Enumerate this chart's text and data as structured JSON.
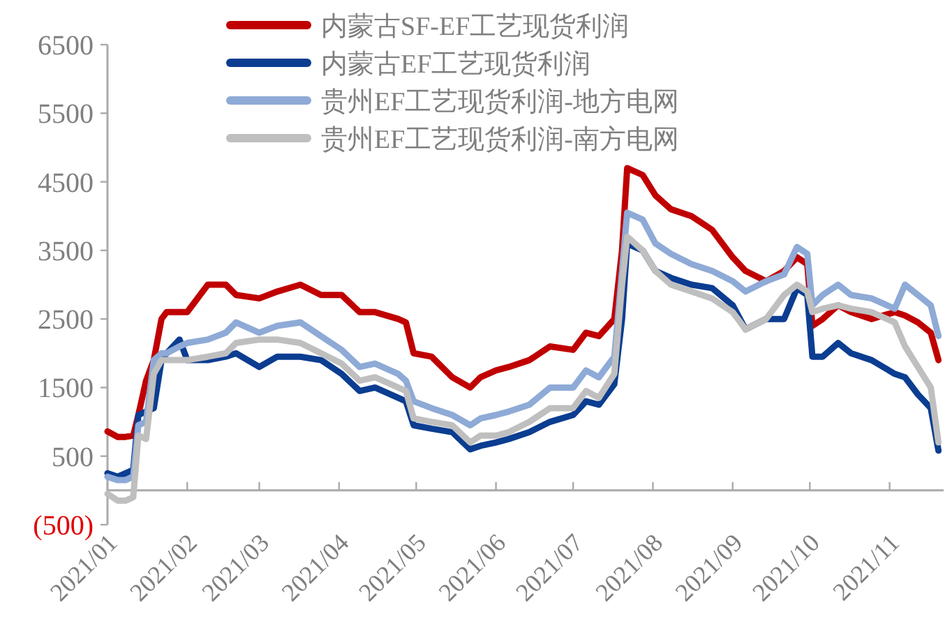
{
  "chart_data": {
    "type": "line",
    "x": [
      "2021-01-01",
      "2021-01-05",
      "2021-01-08",
      "2021-01-11",
      "2021-01-13",
      "2021-01-16",
      "2021-01-19",
      "2021-01-22",
      "2021-01-24",
      "2021-01-29",
      "2021-02-01",
      "2021-02-09",
      "2021-02-16",
      "2021-02-20",
      "2021-03-01",
      "2021-03-08",
      "2021-03-17",
      "2021-03-25",
      "2021-04-02",
      "2021-04-09",
      "2021-04-15",
      "2021-04-24",
      "2021-04-27",
      "2021-04-30",
      "2021-05-07",
      "2021-05-15",
      "2021-05-22",
      "2021-05-26",
      "2021-06-01",
      "2021-06-06",
      "2021-06-14",
      "2021-06-22",
      "2021-07-01",
      "2021-07-06",
      "2021-07-11",
      "2021-07-17",
      "2021-07-20",
      "2021-07-22",
      "2021-07-28",
      "2021-08-02",
      "2021-08-08",
      "2021-08-16",
      "2021-08-24",
      "2021-09-01",
      "2021-09-06",
      "2021-09-14",
      "2021-09-21",
      "2021-09-26",
      "2021-09-30",
      "2021-10-02",
      "2021-10-06",
      "2021-10-12",
      "2021-10-17",
      "2021-10-25",
      "2021-11-03",
      "2021-11-07",
      "2021-11-12",
      "2021-11-17",
      "2021-11-20"
    ],
    "series": [
      {
        "name": "内蒙古SF-EF工艺现货利润",
        "color": "#c00000",
        "values": [
          860,
          780,
          780,
          800,
          1100,
          1600,
          1900,
          2500,
          2600,
          2600,
          2600,
          3000,
          3000,
          2850,
          2800,
          2900,
          3000,
          2850,
          2850,
          2600,
          2600,
          2500,
          2450,
          2000,
          1950,
          1650,
          1500,
          1650,
          1750,
          1800,
          1900,
          2100,
          2050,
          2300,
          2250,
          2500,
          3500,
          4700,
          4600,
          4300,
          4100,
          4000,
          3800,
          3400,
          3200,
          3050,
          3200,
          3400,
          3300,
          2400,
          2500,
          2700,
          2600,
          2500,
          2600,
          2550,
          2450,
          2300,
          1900
        ]
      },
      {
        "name": "内蒙古EF工艺现货利润",
        "color": "#0b3d91",
        "values": [
          250,
          200,
          250,
          300,
          1100,
          1150,
          1200,
          1900,
          2000,
          2200,
          1900,
          1900,
          1950,
          2000,
          1800,
          1950,
          1950,
          1900,
          1700,
          1450,
          1500,
          1350,
          1300,
          950,
          900,
          850,
          600,
          650,
          700,
          750,
          850,
          1000,
          1100,
          1300,
          1250,
          1550,
          2500,
          3600,
          3500,
          3200,
          3100,
          3000,
          2950,
          2700,
          2350,
          2500,
          2500,
          2950,
          2850,
          1950,
          1950,
          2150,
          2000,
          1900,
          1700,
          1650,
          1400,
          1200,
          580
        ]
      },
      {
        "name": "贵州EF工艺现货利润-地方电网",
        "color": "#8eaad6",
        "values": [
          200,
          150,
          150,
          200,
          950,
          1000,
          1900,
          2000,
          2000,
          2100,
          2150,
          2200,
          2300,
          2450,
          2300,
          2400,
          2450,
          2250,
          2050,
          1800,
          1850,
          1700,
          1600,
          1300,
          1200,
          1100,
          950,
          1050,
          1100,
          1150,
          1250,
          1500,
          1500,
          1750,
          1650,
          1950,
          3200,
          4050,
          3950,
          3600,
          3450,
          3300,
          3200,
          3050,
          2900,
          3050,
          3150,
          3550,
          3450,
          2700,
          2850,
          3000,
          2850,
          2800,
          2650,
          3000,
          2850,
          2700,
          2250
        ]
      },
      {
        "name": "贵州EF工艺现货利润-南方电网",
        "color": "#bfbfbf",
        "values": [
          -50,
          -150,
          -150,
          -100,
          800,
          750,
          1700,
          1900,
          1900,
          1900,
          1900,
          1950,
          2000,
          2150,
          2200,
          2200,
          2150,
          2000,
          1850,
          1600,
          1650,
          1500,
          1450,
          1050,
          1000,
          950,
          700,
          800,
          800,
          850,
          1000,
          1200,
          1200,
          1450,
          1350,
          1700,
          3000,
          3700,
          3500,
          3200,
          3000,
          2900,
          2800,
          2600,
          2350,
          2500,
          2850,
          3000,
          2900,
          2600,
          2650,
          2700,
          2650,
          2600,
          2450,
          2100,
          1800,
          1500,
          700
        ]
      }
    ],
    "xlim": [
      "2021-01-01",
      "2021-11-22"
    ],
    "xticks": [
      {
        "value": "2021-01-01",
        "label": "2021/01"
      },
      {
        "value": "2021-02-01",
        "label": "2021/02"
      },
      {
        "value": "2021-03-01",
        "label": "2021/03"
      },
      {
        "value": "2021-04-01",
        "label": "2021/04"
      },
      {
        "value": "2021-05-01",
        "label": "2021/05"
      },
      {
        "value": "2021-06-01",
        "label": "2021/06"
      },
      {
        "value": "2021-07-01",
        "label": "2021/07"
      },
      {
        "value": "2021-08-01",
        "label": "2021/08"
      },
      {
        "value": "2021-09-01",
        "label": "2021/09"
      },
      {
        "value": "2021-10-01",
        "label": "2021/10"
      },
      {
        "value": "2021-11-01",
        "label": "2021/11"
      }
    ],
    "ylim": [
      -500,
      6500
    ],
    "yticks": [
      {
        "value": -500,
        "label": "(500)"
      },
      500,
      1500,
      2500,
      3500,
      4500,
      5500,
      6500
    ],
    "legend": "top",
    "grid": false,
    "marker": "none",
    "line_style": "solid"
  }
}
